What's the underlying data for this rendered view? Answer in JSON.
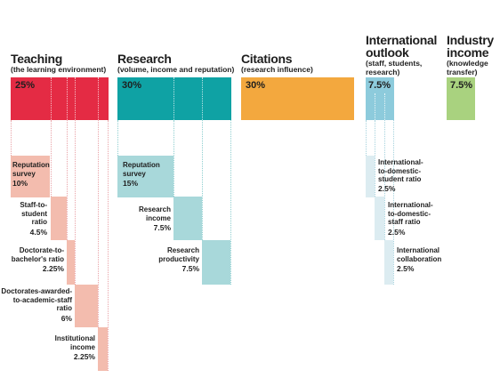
{
  "categories": {
    "teaching": {
      "title": "Teaching",
      "subtitle": "(the learning environment)",
      "weight": "25%",
      "color": "#e42b44",
      "light": "#f3bcae"
    },
    "research": {
      "title": "Research",
      "subtitle": "(volume, income and reputation)",
      "weight": "30%",
      "color": "#0fa2a4",
      "light": "#a8d8da"
    },
    "citations": {
      "title": "Citations",
      "subtitle": "(research influence)",
      "weight": "30%",
      "color": "#f3a83e"
    },
    "international": {
      "title": "International outlook",
      "title_lines": [
        "International",
        "outlook"
      ],
      "subtitle": "(staff, students, research)",
      "subtitle_lines": [
        "(staff, students,",
        "research)"
      ],
      "weight": "7.5%",
      "color": "#8dcbdc",
      "light": "#dcecf1"
    },
    "industry": {
      "title": "Industry income",
      "title_lines": [
        "Industry",
        "income"
      ],
      "subtitle": "(knowledge transfer)",
      "subtitle_lines": [
        "(knowledge",
        "transfer)"
      ],
      "weight": "7.5%",
      "color": "#a9d27f"
    }
  },
  "teaching_subs": [
    {
      "label_lines": [
        "Reputation",
        "survey"
      ],
      "weight": "10%"
    },
    {
      "label_lines": [
        "Staff-to-",
        "student",
        "ratio"
      ],
      "weight": "4.5%"
    },
    {
      "label_lines": [
        "Doctorate-to-",
        "bachelor's ratio"
      ],
      "weight": "2.25%"
    },
    {
      "label_lines": [
        "Doctorates-awarded-",
        "to-academic-staff",
        "ratio"
      ],
      "weight": "6%"
    },
    {
      "label_lines": [
        "Institutional",
        "income"
      ],
      "weight": "2.25%"
    }
  ],
  "research_subs": [
    {
      "label_lines": [
        "Reputation",
        "survey"
      ],
      "weight": "15%"
    },
    {
      "label_lines": [
        "Research",
        "income"
      ],
      "weight": "7.5%"
    },
    {
      "label_lines": [
        "Research",
        "productivity"
      ],
      "weight": "7.5%"
    }
  ],
  "international_subs": [
    {
      "label_lines": [
        "International-",
        "to-domestic-",
        "student ratio"
      ],
      "weight": "2.5%"
    },
    {
      "label_lines": [
        "International-",
        "to-domestic-",
        "staff ratio"
      ],
      "weight": "2.5%"
    },
    {
      "label_lines": [
        "International",
        "collaboration"
      ],
      "weight": "2.5%"
    }
  ]
}
